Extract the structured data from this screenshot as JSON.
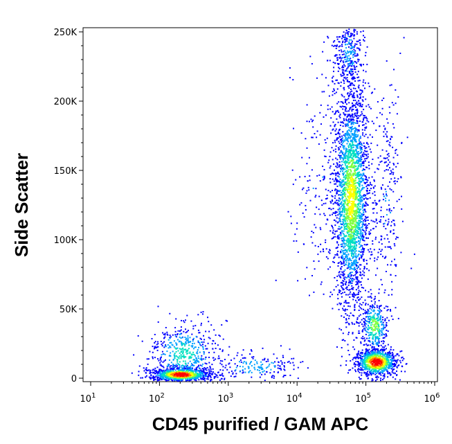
{
  "chart_data": {
    "type": "scatter",
    "title": "",
    "xlabel": "CD45 purified / GAM APC",
    "ylabel": "Side Scatter",
    "x_scale": "log",
    "xlim": [
      10,
      1000000
    ],
    "ylim": [
      0,
      262144
    ],
    "x_ticks": [
      {
        "base": "10",
        "exp": "1",
        "value": 10
      },
      {
        "base": "10",
        "exp": "2",
        "value": 100
      },
      {
        "base": "10",
        "exp": "3",
        "value": 1000
      },
      {
        "base": "10",
        "exp": "4",
        "value": 10000
      },
      {
        "base": "10",
        "exp": "5",
        "value": 100000
      },
      {
        "base": "10",
        "exp": "6",
        "value": 1000000
      }
    ],
    "y_ticks": [
      {
        "label": "0",
        "value": 0
      },
      {
        "label": "50K",
        "value": 50000
      },
      {
        "label": "100K",
        "value": 100000
      },
      {
        "label": "150K",
        "value": 150000
      },
      {
        "label": "200K",
        "value": 200000
      },
      {
        "label": "250K",
        "value": 250000
      }
    ],
    "grid": false,
    "color_scale": [
      "#0000ff",
      "#00a0ff",
      "#00e0c0",
      "#80ff40",
      "#ffff00",
      "#ff8000",
      "#ff0000"
    ],
    "populations": [
      {
        "x_center": 60000,
        "y_center": 130000,
        "x_spread_log": 0.13,
        "y_spread": 40000,
        "count": 2600,
        "peak_density": 0.6
      },
      {
        "x_center": 55000,
        "y_center": 235000,
        "x_spread_log": 0.12,
        "y_spread": 15000,
        "count": 350,
        "peak_density": 0.15
      },
      {
        "x_center": 140000,
        "y_center": 12000,
        "x_spread_log": 0.15,
        "y_spread": 5000,
        "count": 900,
        "peak_density": 1.0
      },
      {
        "x_center": 130000,
        "y_center": 38000,
        "x_spread_log": 0.1,
        "y_spread": 10000,
        "count": 350,
        "peak_density": 0.5
      },
      {
        "x_center": 200,
        "y_center": 3000,
        "x_spread_log": 0.22,
        "y_spread": 2500,
        "count": 900,
        "peak_density": 1.0
      },
      {
        "x_center": 220,
        "y_center": 18000,
        "x_spread_log": 0.25,
        "y_spread": 12000,
        "count": 500,
        "peak_density": 0.35
      },
      {
        "x_center": 2500,
        "y_center": 9000,
        "x_spread_log": 0.35,
        "y_spread": 5000,
        "count": 180,
        "peak_density": 0.2
      },
      {
        "x_center": 200000,
        "y_center": 130000,
        "x_spread_log": 0.12,
        "y_spread": 40000,
        "count": 250,
        "peak_density": 0.1
      },
      {
        "x_center": 20000,
        "y_center": 140000,
        "x_spread_log": 0.2,
        "y_spread": 40000,
        "count": 180,
        "peak_density": 0.08
      }
    ]
  }
}
